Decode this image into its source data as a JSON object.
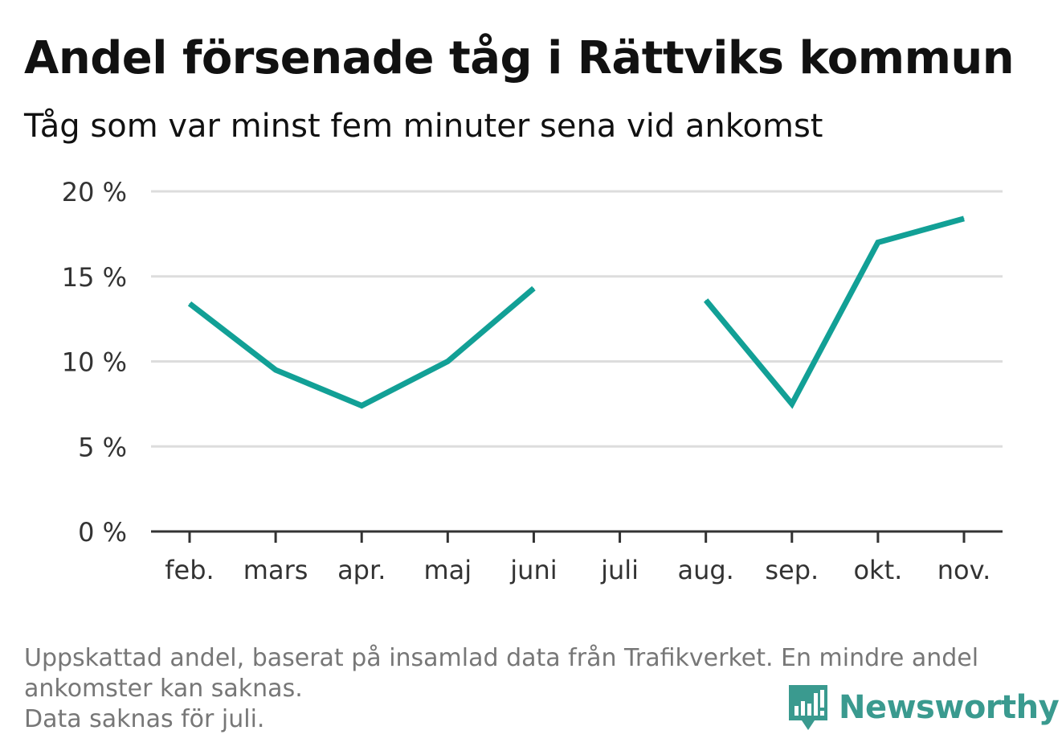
{
  "title": "Andel försenade tåg i Rättviks kommun",
  "subtitle": "Tåg som var minst fem minuter sena vid ankomst",
  "chart_data": {
    "type": "line",
    "categories": [
      "feb.",
      "mars",
      "apr.",
      "maj",
      "juni",
      "juli",
      "aug.",
      "sep.",
      "okt.",
      "nov."
    ],
    "series": [
      {
        "values": [
          13.4,
          9.5,
          7.4,
          10.0,
          14.3,
          null,
          13.6,
          7.5,
          17.0,
          18.4
        ],
        "color": "#12a096"
      }
    ],
    "yticks": [
      0,
      5,
      10,
      15,
      20
    ],
    "ytick_labels": [
      "0 %",
      "5 %",
      "10 %",
      "15 %",
      "20 %"
    ],
    "ylim": [
      0,
      20
    ],
    "grid": true,
    "legend": "none"
  },
  "footnote": {
    "line1": "Uppskattad andel, baserat på insamlad data från Trafikverket. En mindre andel",
    "line2": "ankomster kan saknas.",
    "line3": "Data saknas för juli."
  },
  "brand": {
    "name": "Newsworthy",
    "icon": "newsworthy-logo-icon",
    "color": "#3a9a8f"
  }
}
